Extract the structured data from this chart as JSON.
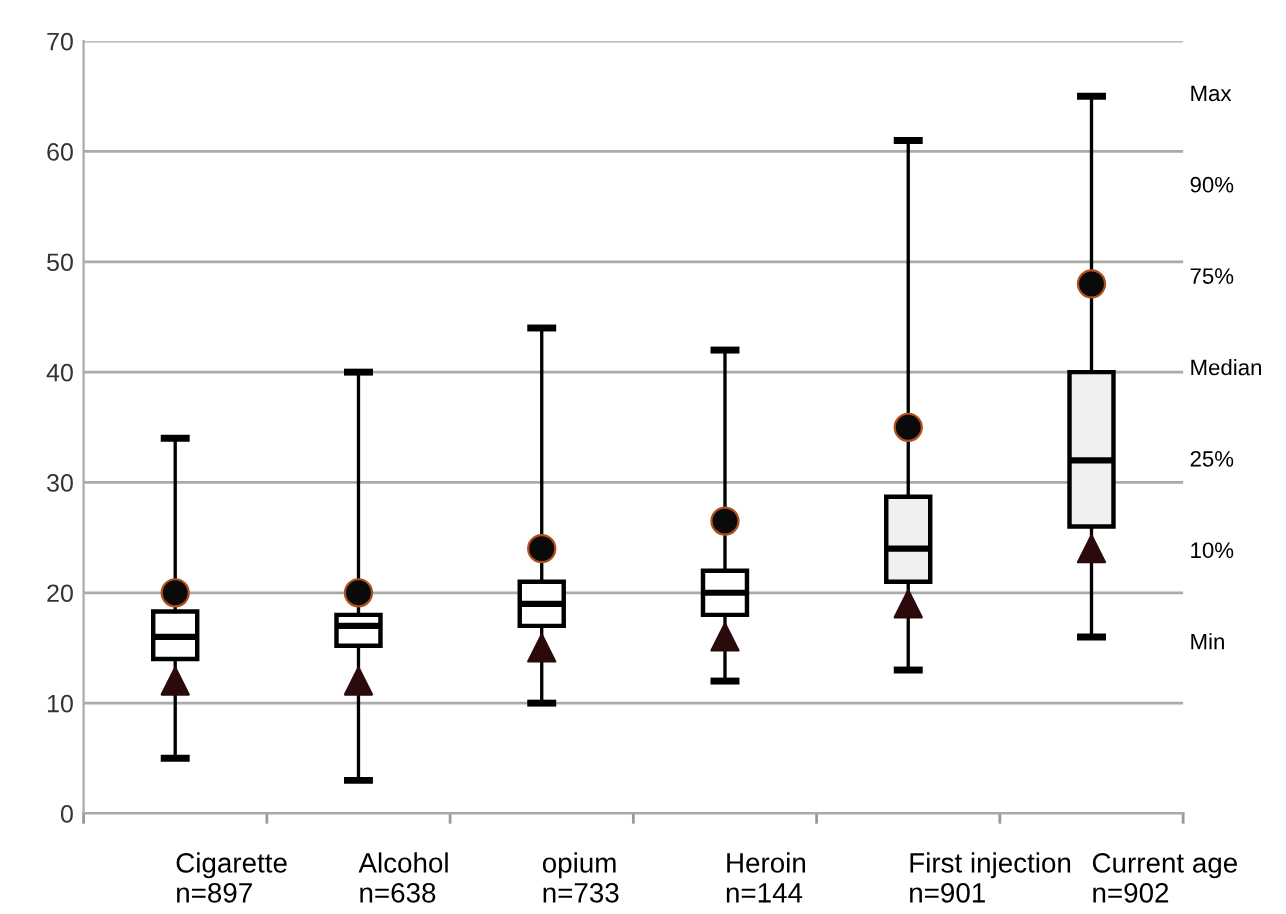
{
  "chart_data": {
    "type": "box",
    "categories": [
      "Cigarette\nn=897",
      "Alcohol\nn=638",
      "opium\nn=733",
      "Heroin\nn=144",
      "First injection\nn=901",
      "Current age\nn=902"
    ],
    "boxes": [
      {
        "low": 5,
        "q1": 14,
        "median": 16,
        "q3": 18.3,
        "high": 34
      },
      {
        "low": 3,
        "q1": 15.2,
        "median": 17,
        "q3": 18,
        "high": 40
      },
      {
        "low": 10,
        "q1": 17,
        "median": 19,
        "q3": 21,
        "high": 44
      },
      {
        "low": 12,
        "q1": 18,
        "median": 20,
        "q3": 22,
        "high": 42
      },
      {
        "low": 13,
        "q1": 21,
        "median": 24,
        "q3": 28.7,
        "high": 61
      },
      {
        "low": 16,
        "q1": 26,
        "median": 32,
        "q3": 40,
        "high": 65
      }
    ],
    "colors": [
      "#ffffff",
      "#ffffff",
      "#ffffff",
      "#ffffff",
      "#f0f0f0",
      "#f0f0f0"
    ],
    "series": [
      {
        "type": "scatter",
        "marker": "triangle",
        "color": "#2a0a0a",
        "x": [
          "Cigarette\nn=897",
          "Alcohol\nn=638",
          "opium\nn=733",
          "Heroin\nn=144",
          "First injection\nn=901",
          "Current age\nn=902"
        ],
        "values": [
          12,
          12,
          15,
          16,
          19,
          24
        ]
      },
      {
        "type": "scatter",
        "marker": "circle",
        "color": "#0a0a0a",
        "x": [
          "Cigarette\nn=897",
          "Alcohol\nn=638",
          "opium\nn=733",
          "Heroin\nn=144",
          "First injection\nn=901",
          "Current age\nn=902"
        ],
        "values": [
          20,
          20,
          24,
          26.5,
          35,
          48
        ]
      }
    ],
    "ylim": [
      0,
      70
    ],
    "yticks": [
      0,
      10,
      20,
      30,
      40,
      50,
      60,
      70
    ],
    "grid": "y",
    "annotations": [
      "Max",
      "90%",
      "75%",
      "Median",
      "25%",
      "10%",
      "Min"
    ]
  }
}
